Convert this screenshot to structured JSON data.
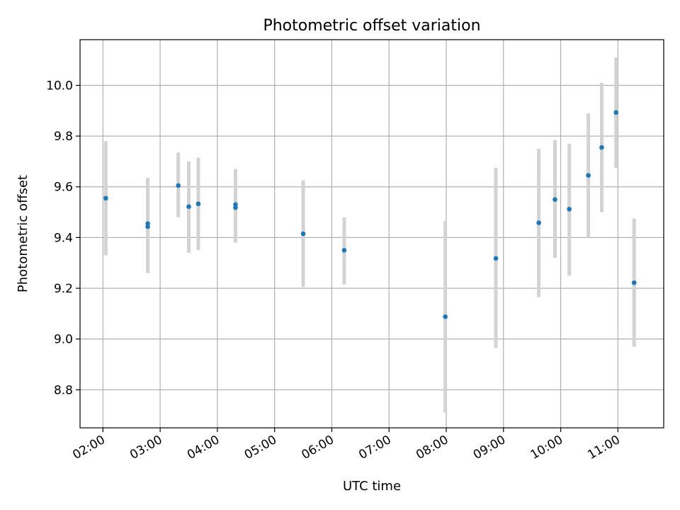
{
  "chart_data": {
    "type": "scatter",
    "title": "Photometric offset variation",
    "xlabel": "UTC time",
    "ylabel": "Photometric offset",
    "xlim": [
      "01:36",
      "11:48"
    ],
    "ylim": [
      8.65,
      10.18
    ],
    "x_ticks": [
      "02:00",
      "03:00",
      "04:00",
      "05:00",
      "06:00",
      "07:00",
      "08:00",
      "09:00",
      "10:00",
      "11:00"
    ],
    "y_ticks": [
      "8.8",
      "9.0",
      "9.2",
      "9.4",
      "9.6",
      "9.8",
      "10.0"
    ],
    "grid": true,
    "marker_color": "#1f77b4",
    "errorbar_color": "#d3d3d3",
    "points": [
      {
        "time": "02:03",
        "y": 9.555,
        "err_low": 9.33,
        "err_high": 9.78
      },
      {
        "time": "02:47",
        "y": 9.455,
        "err_low": 9.26,
        "err_high": 9.635
      },
      {
        "time": "02:47",
        "y": 9.443,
        "err_low": 9.26,
        "err_high": 9.635
      },
      {
        "time": "03:19",
        "y": 9.605,
        "err_low": 9.48,
        "err_high": 9.735
      },
      {
        "time": "03:30",
        "y": 9.522,
        "err_low": 9.34,
        "err_high": 9.7
      },
      {
        "time": "03:40",
        "y": 9.533,
        "err_low": 9.35,
        "err_high": 9.715
      },
      {
        "time": "04:19",
        "y": 9.53,
        "err_low": 9.38,
        "err_high": 9.67
      },
      {
        "time": "04:19",
        "y": 9.518,
        "err_low": 9.38,
        "err_high": 9.655
      },
      {
        "time": "05:30",
        "y": 9.415,
        "err_low": 9.205,
        "err_high": 9.625
      },
      {
        "time": "06:13",
        "y": 9.35,
        "err_low": 9.215,
        "err_high": 9.48
      },
      {
        "time": "07:59",
        "y": 9.088,
        "err_low": 8.71,
        "err_high": 9.465
      },
      {
        "time": "08:52",
        "y": 9.318,
        "err_low": 8.965,
        "err_high": 9.675
      },
      {
        "time": "09:37",
        "y": 9.458,
        "err_low": 9.165,
        "err_high": 9.75
      },
      {
        "time": "09:54",
        "y": 9.55,
        "err_low": 9.32,
        "err_high": 9.785
      },
      {
        "time": "10:09",
        "y": 9.512,
        "err_low": 9.25,
        "err_high": 9.77
      },
      {
        "time": "10:29",
        "y": 9.645,
        "err_low": 9.4,
        "err_high": 9.89
      },
      {
        "time": "10:43",
        "y": 9.755,
        "err_low": 9.5,
        "err_high": 10.01
      },
      {
        "time": "10:58",
        "y": 9.893,
        "err_low": 9.675,
        "err_high": 10.11
      },
      {
        "time": "11:17",
        "y": 9.222,
        "err_low": 8.97,
        "err_high": 9.475
      }
    ]
  }
}
